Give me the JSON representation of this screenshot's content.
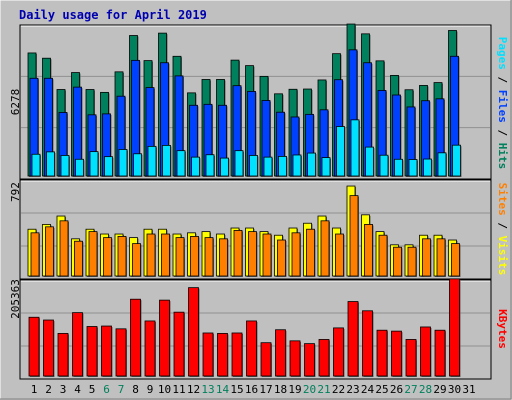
{
  "title": "Daily usage for April 2019",
  "colors": {
    "background": "#c0c0c0",
    "grid": "#909090",
    "hits": "#00805c",
    "files": "#0040ff",
    "pages": "#00e0ff",
    "visits": "#ffff00",
    "sites": "#ff8000",
    "kbytes": "#ff0000",
    "title": "#0000b0",
    "weekday_label": "#000000",
    "weekend_label": "#00805c"
  },
  "legend": {
    "hits_files_pages": [
      "Pages",
      "Files",
      "Hits"
    ],
    "visits_sites": [
      "Sites",
      "Visits"
    ],
    "kbytes": [
      "KBytes"
    ]
  },
  "chart_data": [
    {
      "type": "bar",
      "name": "hits-files-pages",
      "ymax_label": "6278",
      "ylim": [
        0,
        6278
      ],
      "categories": [
        "1",
        "2",
        "3",
        "4",
        "5",
        "6",
        "7",
        "8",
        "9",
        "10",
        "11",
        "12",
        "13",
        "14",
        "15",
        "16",
        "17",
        "18",
        "19",
        "20",
        "21",
        "22",
        "23",
        "24",
        "25",
        "26",
        "27",
        "28",
        "29",
        "30",
        "31"
      ],
      "weekend_days": [
        "6",
        "7",
        "13",
        "14",
        "20",
        "21",
        "27",
        "28"
      ],
      "series": [
        {
          "name": "Hits",
          "values": [
            5150,
            4930,
            3620,
            4330,
            3620,
            3500,
            4360,
            5880,
            4830,
            5980,
            5010,
            3480,
            4040,
            4040,
            4850,
            4620,
            4170,
            3440,
            3630,
            3640,
            4020,
            5120,
            6360,
            5950,
            4820,
            4210,
            3610,
            3790,
            3910,
            6090,
            0
          ]
        },
        {
          "name": "Files",
          "values": [
            4090,
            4090,
            2660,
            3720,
            2560,
            2600,
            3340,
            4840,
            3700,
            4740,
            4190,
            2960,
            3000,
            2960,
            3780,
            3540,
            3160,
            2670,
            2470,
            2580,
            2770,
            4030,
            5280,
            4740,
            3580,
            3390,
            2890,
            3150,
            3230,
            5010,
            0
          ]
        },
        {
          "name": "Pages",
          "values": [
            910,
            1010,
            860,
            700,
            1020,
            810,
            1110,
            930,
            1240,
            1280,
            1060,
            790,
            890,
            750,
            1060,
            860,
            790,
            820,
            880,
            960,
            770,
            2070,
            2350,
            1210,
            870,
            700,
            690,
            710,
            970,
            1290,
            0
          ]
        }
      ]
    },
    {
      "type": "bar",
      "name": "visits-sites",
      "ymax_label": "792",
      "ylim": [
        0,
        792
      ],
      "categories": [
        "1",
        "2",
        "3",
        "4",
        "5",
        "6",
        "7",
        "8",
        "9",
        "10",
        "11",
        "12",
        "13",
        "14",
        "15",
        "16",
        "17",
        "18",
        "19",
        "20",
        "21",
        "22",
        "23",
        "24",
        "25",
        "26",
        "27",
        "28",
        "29",
        "30",
        "31"
      ],
      "series": [
        {
          "name": "Visits",
          "values": [
            390,
            430,
            500,
            310,
            390,
            350,
            350,
            320,
            390,
            390,
            350,
            360,
            370,
            350,
            400,
            400,
            370,
            340,
            400,
            440,
            500,
            400,
            750,
            510,
            370,
            260,
            260,
            340,
            340,
            300,
            0
          ]
        },
        {
          "name": "Sites",
          "values": [
            360,
            410,
            460,
            290,
            370,
            320,
            330,
            270,
            350,
            350,
            320,
            330,
            320,
            310,
            380,
            370,
            350,
            300,
            360,
            390,
            460,
            350,
            670,
            430,
            340,
            240,
            240,
            310,
            310,
            270,
            0
          ]
        }
      ]
    },
    {
      "type": "bar",
      "name": "kbytes",
      "ymax_label": "205363",
      "ylim": [
        0,
        205363
      ],
      "categories": [
        "1",
        "2",
        "3",
        "4",
        "5",
        "6",
        "7",
        "8",
        "9",
        "10",
        "11",
        "12",
        "13",
        "14",
        "15",
        "16",
        "17",
        "18",
        "19",
        "20",
        "21",
        "22",
        "23",
        "24",
        "25",
        "26",
        "27",
        "28",
        "29",
        "30",
        "31"
      ],
      "series": [
        {
          "name": "KBytes",
          "values": [
            127000,
            121000,
            92000,
            137000,
            107000,
            108000,
            102000,
            166000,
            119000,
            164000,
            138000,
            191000,
            93000,
            92000,
            93000,
            119000,
            72000,
            100000,
            76000,
            70000,
            79000,
            104000,
            161000,
            141000,
            99000,
            97000,
            79000,
            106000,
            99000,
            210000,
            0
          ]
        }
      ]
    }
  ]
}
